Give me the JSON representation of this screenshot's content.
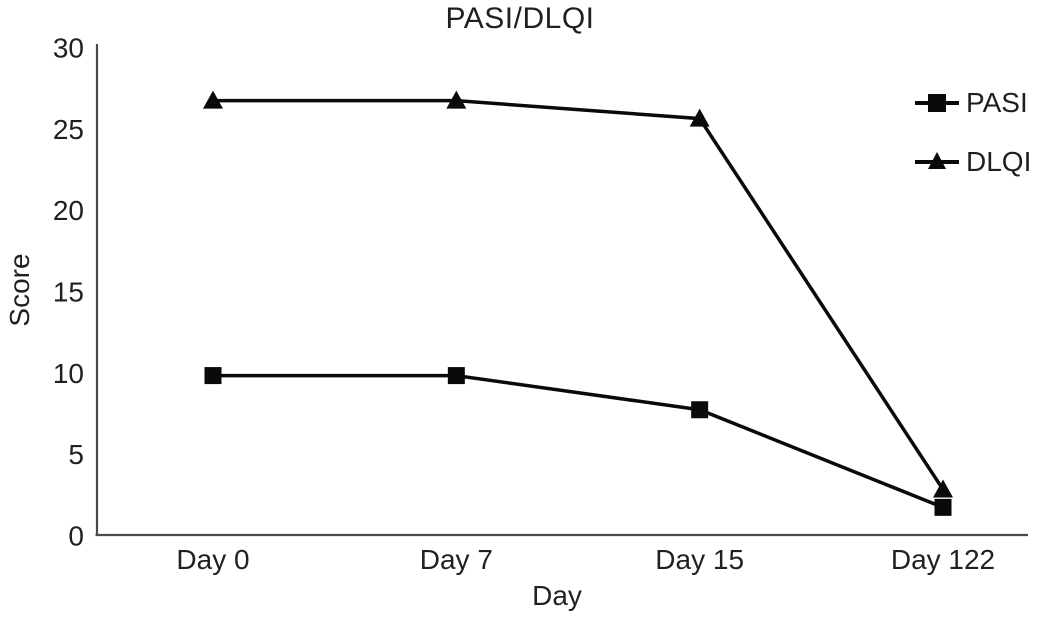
{
  "chart_data": {
    "type": "line",
    "title": "PASI/DLQI",
    "xlabel": "Day",
    "ylabel": "Score",
    "categories": [
      "Day 0",
      "Day 7",
      "Day 15",
      "Day 122"
    ],
    "series": [
      {
        "name": "PASI",
        "marker": "square",
        "values": [
          9.8,
          9.8,
          7.7,
          1.7
        ]
      },
      {
        "name": "DLQI",
        "marker": "triangle",
        "values": [
          26.7,
          26.7,
          25.6,
          2.8
        ]
      }
    ],
    "ylim": [
      0,
      30
    ],
    "yticks": [
      0,
      5,
      10,
      15,
      20,
      25,
      30
    ],
    "grid": false,
    "legend_position": "top-right",
    "line_color": "#0a0a0a",
    "axis_color": "#4a4a4a",
    "text_color": "#231f20"
  }
}
